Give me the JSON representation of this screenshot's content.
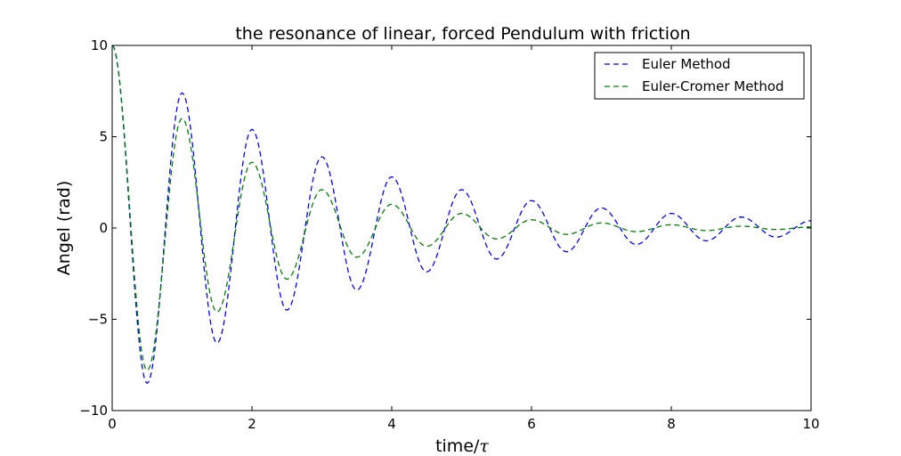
{
  "chart_data": {
    "type": "line",
    "title": "the resonance of linear, forced Pendulum with friction",
    "xlabel": "time/",
    "xlabel_symbol": "τ",
    "ylabel": "Angel (rad)",
    "xlim": [
      0,
      10
    ],
    "ylim": [
      -10,
      10
    ],
    "xticks": [
      0,
      2,
      4,
      6,
      8,
      10
    ],
    "xtick_labels": [
      "0",
      "2",
      "4",
      "6",
      "8",
      "10"
    ],
    "yticks": [
      -10,
      -5,
      0,
      5,
      10
    ],
    "ytick_labels": [
      "−10",
      "−5",
      "0",
      "5",
      "10"
    ],
    "grid": false,
    "legend_position": "top-right",
    "series": [
      {
        "name": "Euler Method",
        "color": "#0000ff",
        "style": "dashed",
        "x": [
          0,
          0.5,
          1,
          1.5,
          2,
          2.5,
          3,
          3.5,
          4,
          4.5,
          5,
          5.5,
          6,
          6.5,
          7,
          7.5,
          8,
          8.5,
          9,
          9.5,
          10
        ],
        "y": [
          10,
          -8.5,
          7.4,
          -6.3,
          5.4,
          -4.5,
          3.9,
          -3.4,
          2.8,
          -2.4,
          2.1,
          -1.7,
          1.5,
          -1.3,
          1.1,
          -0.9,
          0.8,
          -0.7,
          0.6,
          -0.5,
          0.4
        ]
      },
      {
        "name": "Euler-Cromer Method",
        "color": "#008000",
        "style": "dashed",
        "x": [
          0,
          0.5,
          1,
          1.5,
          2,
          2.5,
          3,
          3.5,
          4,
          4.5,
          5,
          5.5,
          6,
          6.5,
          7,
          7.5,
          8,
          8.5,
          9,
          9.5,
          10
        ],
        "y": [
          10,
          -7.8,
          6.0,
          -4.6,
          3.6,
          -2.8,
          2.1,
          -1.6,
          1.3,
          -1.0,
          0.8,
          -0.6,
          0.45,
          -0.35,
          0.28,
          -0.2,
          0.18,
          -0.14,
          0.1,
          -0.08,
          0.06
        ]
      }
    ]
  }
}
